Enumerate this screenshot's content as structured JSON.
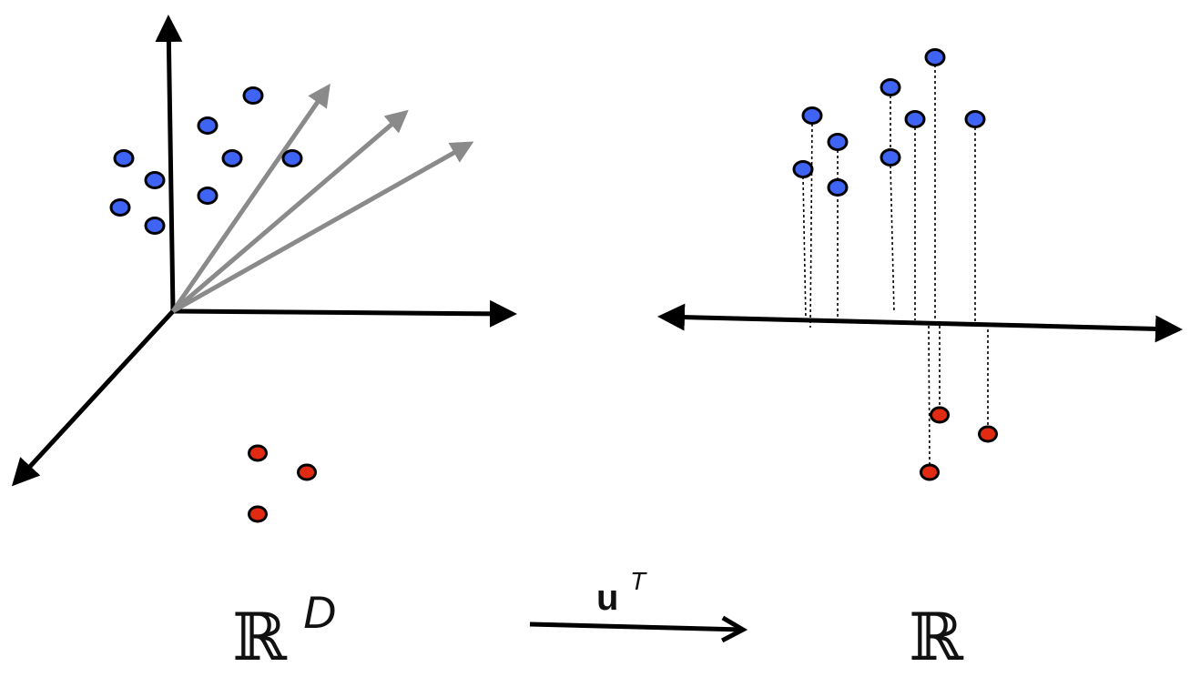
{
  "left_space": {
    "symbol": "ℝ",
    "superscript": "D"
  },
  "right_space": {
    "symbol": "ℝ"
  },
  "mapping": {
    "vector": "u",
    "superscript": "T"
  },
  "colors": {
    "class_a": "#3f63f2",
    "class_b": "#e02a12",
    "axis": "#000000",
    "direction_vectors": "#8a8a8a",
    "projection_lines": "#000000"
  }
}
